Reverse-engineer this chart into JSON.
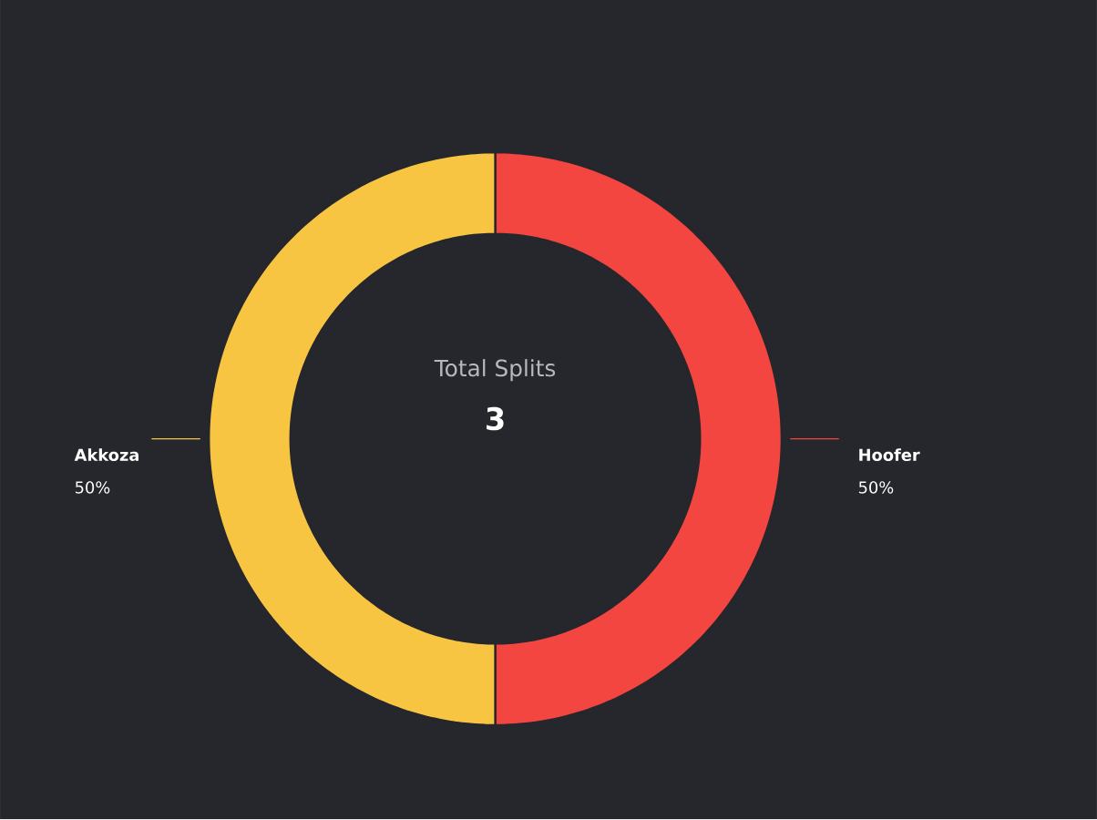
{
  "chart_data": {
    "type": "donut",
    "title": "Total Splits",
    "annotations": [
      "3"
    ],
    "categories": [
      "Hoofer",
      "Akkoza"
    ],
    "values": [
      50,
      50
    ],
    "colors": [
      "#f44640",
      "#f8c543"
    ],
    "value_labels": [
      "50%",
      "50%"
    ]
  }
}
